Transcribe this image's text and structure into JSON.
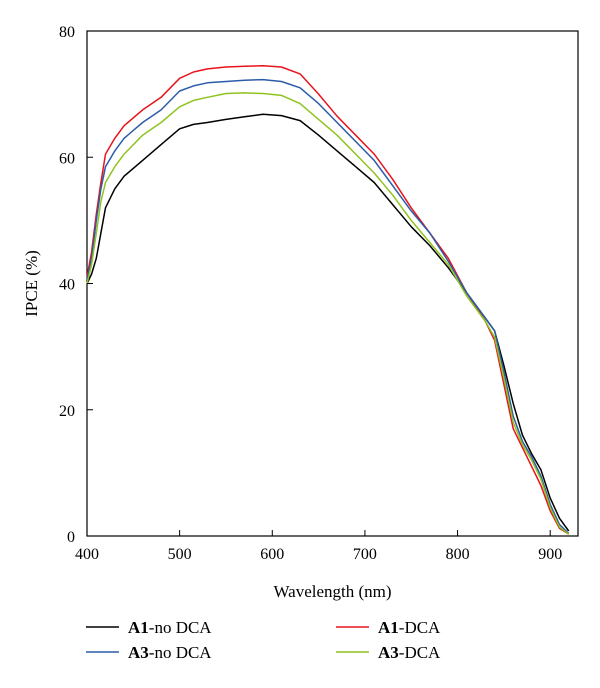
{
  "chart_data": {
    "type": "line",
    "title": "",
    "xlabel": "Wavelength (nm)",
    "ylabel": "IPCE (%)",
    "xlim": [
      400,
      930
    ],
    "ylim": [
      0,
      80
    ],
    "xticks": [
      400,
      500,
      600,
      700,
      800,
      900
    ],
    "yticks": [
      0,
      20,
      40,
      60,
      80
    ],
    "grid": false,
    "legend_position": "bottom",
    "series": [
      {
        "name": "A1-no DCA",
        "name_bold": "A1",
        "name_rest": "-no DCA",
        "color": "#000000",
        "x": [
          400,
          405,
          410,
          415,
          420,
          430,
          440,
          460,
          480,
          500,
          515,
          530,
          550,
          570,
          590,
          610,
          630,
          650,
          670,
          690,
          710,
          730,
          750,
          770,
          790,
          810,
          830,
          840,
          850,
          860,
          870,
          880,
          890,
          900,
          910,
          920
        ],
        "y": [
          40,
          41.5,
          44,
          48,
          52,
          55,
          57,
          59.5,
          62,
          64.5,
          65.2,
          65.5,
          66,
          66.4,
          66.8,
          66.6,
          65.8,
          63.5,
          61,
          58.5,
          56,
          52.5,
          49,
          46,
          42.5,
          38.5,
          34.5,
          32.5,
          27,
          21,
          16,
          13,
          10.5,
          6,
          2.8,
          0.8
        ]
      },
      {
        "name": "A1-DCA",
        "name_bold": "A1",
        "name_rest": "-DCA",
        "color": "#e8141c",
        "x": [
          400,
          405,
          410,
          415,
          420,
          430,
          440,
          460,
          480,
          500,
          515,
          530,
          550,
          570,
          590,
          610,
          630,
          650,
          670,
          690,
          710,
          730,
          750,
          770,
          790,
          810,
          830,
          840,
          850,
          860,
          870,
          880,
          890,
          900,
          910,
          920
        ],
        "y": [
          41,
          45,
          51,
          56,
          60.5,
          63,
          65,
          67.5,
          69.5,
          72.5,
          73.5,
          74,
          74.3,
          74.4,
          74.5,
          74.3,
          73.2,
          70,
          66.5,
          63.5,
          60.5,
          56.5,
          52,
          48,
          44,
          38.5,
          34,
          31,
          24,
          17,
          14,
          11,
          8,
          4,
          1.2,
          0.3
        ]
      },
      {
        "name": "A3-no DCA",
        "name_bold": "A3",
        "name_rest": "-no DCA",
        "color": "#2b5ca8",
        "x": [
          400,
          405,
          410,
          415,
          420,
          430,
          440,
          460,
          480,
          500,
          515,
          530,
          550,
          570,
          590,
          610,
          630,
          650,
          670,
          690,
          710,
          730,
          750,
          770,
          790,
          810,
          830,
          840,
          850,
          860,
          870,
          880,
          890,
          900,
          910,
          920
        ],
        "y": [
          40.5,
          44,
          50,
          55,
          58.5,
          61,
          63,
          65.5,
          67.5,
          70.5,
          71.3,
          71.8,
          72,
          72.2,
          72.3,
          72,
          71,
          68.5,
          65.5,
          62.5,
          59.5,
          55.5,
          51.5,
          48,
          43.5,
          38.5,
          34.5,
          32.5,
          26,
          19,
          15,
          12.5,
          9.5,
          5,
          1.8,
          0.4
        ]
      },
      {
        "name": "A3-DCA",
        "name_bold": "A3",
        "name_rest": "-DCA",
        "color": "#8fc31f",
        "x": [
          400,
          405,
          410,
          415,
          420,
          430,
          440,
          460,
          480,
          500,
          515,
          530,
          550,
          570,
          590,
          610,
          630,
          650,
          670,
          690,
          710,
          730,
          750,
          770,
          790,
          810,
          830,
          840,
          850,
          860,
          870,
          880,
          890,
          900,
          910,
          920
        ],
        "y": [
          40,
          43,
          48,
          53,
          56,
          58.5,
          60.5,
          63.5,
          65.5,
          68,
          69,
          69.5,
          70.1,
          70.2,
          70.1,
          69.8,
          68.5,
          66,
          63.5,
          60.5,
          57.5,
          54,
          50,
          46.5,
          43,
          38,
          34,
          31.5,
          25,
          18,
          14.5,
          12,
          9,
          4.5,
          1.4,
          0.3
        ]
      }
    ]
  }
}
